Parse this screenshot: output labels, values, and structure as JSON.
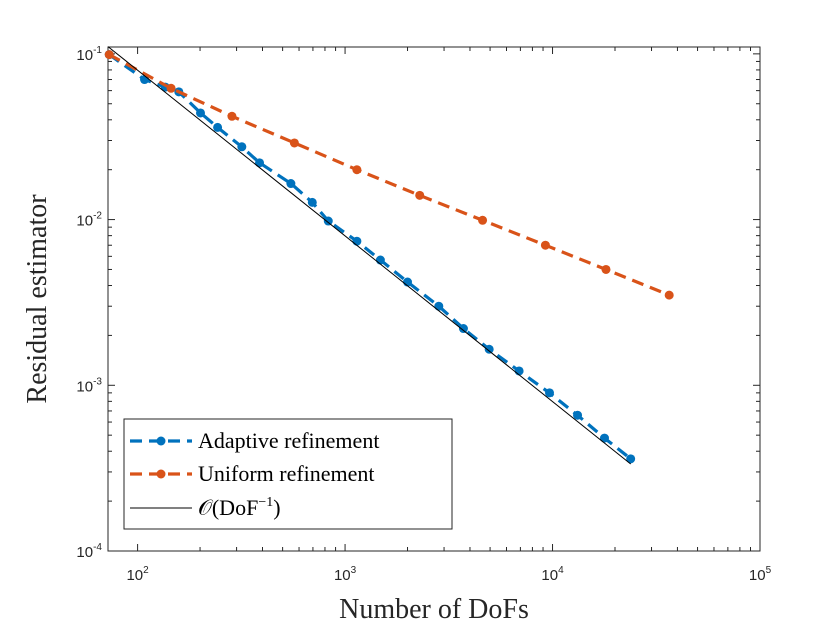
{
  "chart_data": {
    "type": "line",
    "xscale": "log",
    "yscale": "log",
    "xlim": [
      72,
      100000
    ],
    "ylim": [
      0.0001,
      0.11
    ],
    "xlabel": "Number of DoFs",
    "ylabel": "Residual estimator",
    "grid": false,
    "legend_position": "bottom-left",
    "x_ticks": [
      {
        "value": 100,
        "base": "10",
        "exp": "2"
      },
      {
        "value": 1000,
        "base": "10",
        "exp": "3"
      },
      {
        "value": 10000,
        "base": "10",
        "exp": "4"
      },
      {
        "value": 100000,
        "base": "10",
        "exp": "5"
      }
    ],
    "y_ticks": [
      {
        "value": 0.1,
        "base": "10",
        "exp": "-1"
      },
      {
        "value": 0.01,
        "base": "10",
        "exp": "-2"
      },
      {
        "value": 0.001,
        "base": "10",
        "exp": "-3"
      },
      {
        "value": 0.0001,
        "base": "10",
        "exp": "-4"
      }
    ],
    "series": [
      {
        "name": "Adaptive refinement",
        "color": "#0072BD",
        "style": "dashed-with-markers",
        "x": [
          73,
          108,
          136,
          158,
          201,
          243,
          318,
          387,
          548,
          695,
          830,
          1140,
          1480,
          2000,
          2830,
          3720,
          4950,
          6900,
          9670,
          13200,
          17800,
          23800
        ],
        "y": [
          0.099,
          0.07,
          0.063,
          0.059,
          0.044,
          0.036,
          0.0275,
          0.022,
          0.0165,
          0.0127,
          0.0098,
          0.0074,
          0.0057,
          0.0042,
          0.003,
          0.0022,
          0.00165,
          0.00122,
          0.0009,
          0.00066,
          0.00048,
          0.00036
        ]
      },
      {
        "name": "Uniform refinement",
        "color": "#D95319",
        "style": "dashed-with-markers",
        "x": [
          73,
          145,
          285,
          570,
          1140,
          2290,
          4600,
          9240,
          18100,
          36500
        ],
        "y": [
          0.099,
          0.062,
          0.042,
          0.029,
          0.02,
          0.014,
          0.0099,
          0.007,
          0.005,
          0.0035
        ]
      },
      {
        "name_prefix": "𝒪(DoF",
        "name_exp": "−1",
        "name_suffix": ")",
        "color": "#000000",
        "style": "solid",
        "x": [
          72,
          23800
        ],
        "y": [
          0.1106,
          0.000335
        ]
      }
    ]
  }
}
